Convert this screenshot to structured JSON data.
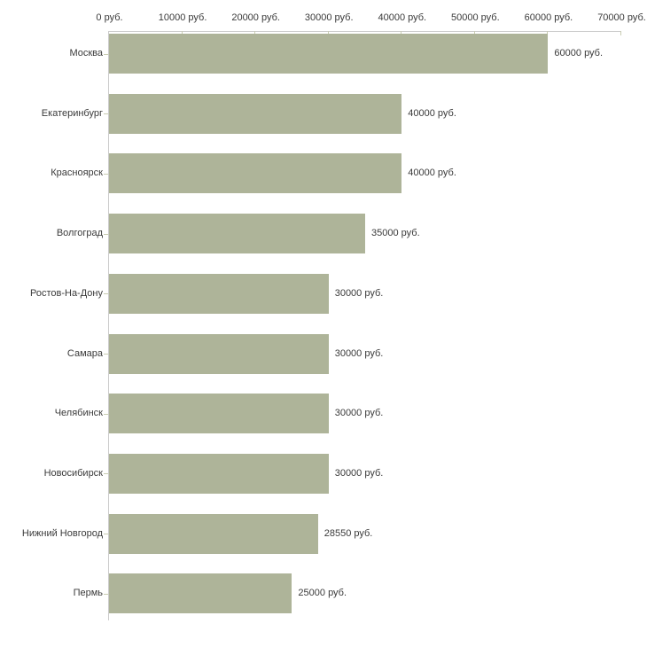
{
  "chart_data": {
    "type": "bar",
    "orientation": "horizontal",
    "title": "",
    "xlabel": "",
    "ylabel": "",
    "categories": [
      "Москва",
      "Екатеринбург",
      "Красноярск",
      "Волгоград",
      "Ростов-На-Дону",
      "Самара",
      "Челябинск",
      "Новосибирск",
      "Нижний Новгород",
      "Пермь"
    ],
    "values": [
      60000,
      40000,
      40000,
      35000,
      30000,
      30000,
      30000,
      30000,
      28550,
      25000
    ],
    "value_labels": [
      "60000 руб.",
      "40000 руб.",
      "40000 руб.",
      "35000 руб.",
      "30000 руб.",
      "30000 руб.",
      "30000 руб.",
      "30000 руб.",
      "28550 руб.",
      "25000 руб."
    ],
    "x_ticks": [
      0,
      10000,
      20000,
      30000,
      40000,
      50000,
      60000,
      70000
    ],
    "x_tick_labels": [
      "0 руб.",
      "10000 руб.",
      "20000 руб.",
      "30000 руб.",
      "40000 руб.",
      "50000 руб.",
      "60000 руб.",
      "70000 руб."
    ],
    "xlim": [
      0,
      70000
    ],
    "legend": null,
    "grid": false,
    "axis_position": "top-left",
    "colors": {
      "bar": "#aeb499",
      "axis_line": "#cccccc",
      "tick": "#c9cdb2",
      "text": "#3a3a3a",
      "background": "#ffffff"
    }
  }
}
